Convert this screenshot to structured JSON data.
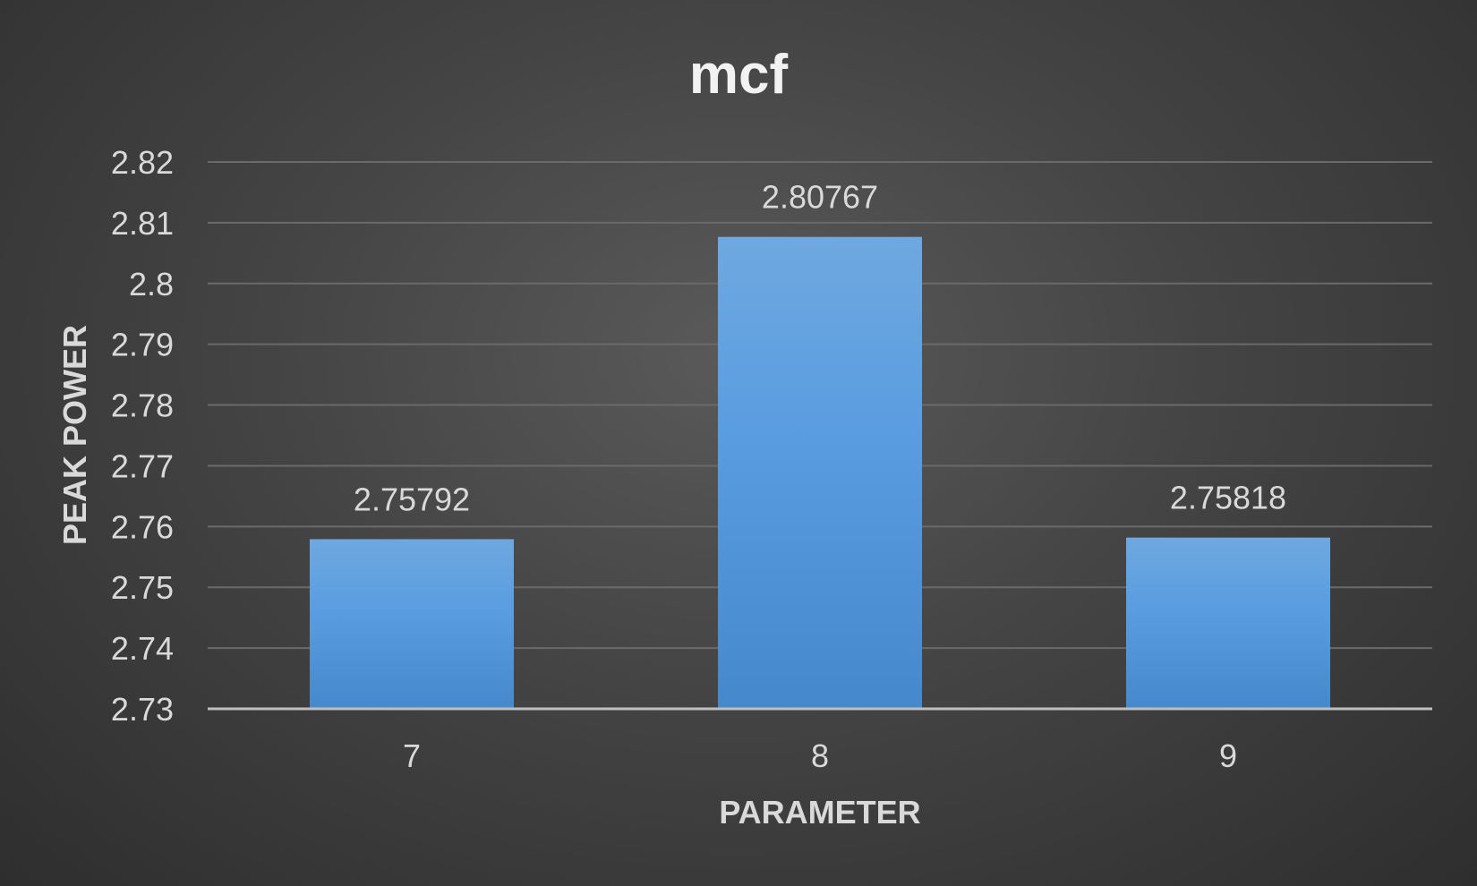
{
  "chart_data": {
    "type": "bar",
    "title": "mcf",
    "xlabel": "PARAMETER",
    "ylabel": "PEAK POWER",
    "categories": [
      "7",
      "8",
      "9"
    ],
    "values": [
      2.75792,
      2.80767,
      2.75818
    ],
    "data_labels": [
      "2.75792",
      "2.80767",
      "2.75818"
    ],
    "ylim": [
      2.73,
      2.82
    ],
    "y_ticks": [
      2.73,
      2.74,
      2.75,
      2.76,
      2.77,
      2.78,
      2.79,
      2.8,
      2.81,
      2.82
    ],
    "y_tick_labels": [
      "2.73",
      "2.74",
      "2.75",
      "2.76",
      "2.77",
      "2.78",
      "2.79",
      "2.8",
      "2.81",
      "2.82"
    ],
    "grid": true,
    "legend": "none",
    "colors": {
      "bar_top": "#6fa8e0",
      "bar_bottom": "#4589cc",
      "background": "#444444",
      "text": "#d9d9d9"
    }
  }
}
